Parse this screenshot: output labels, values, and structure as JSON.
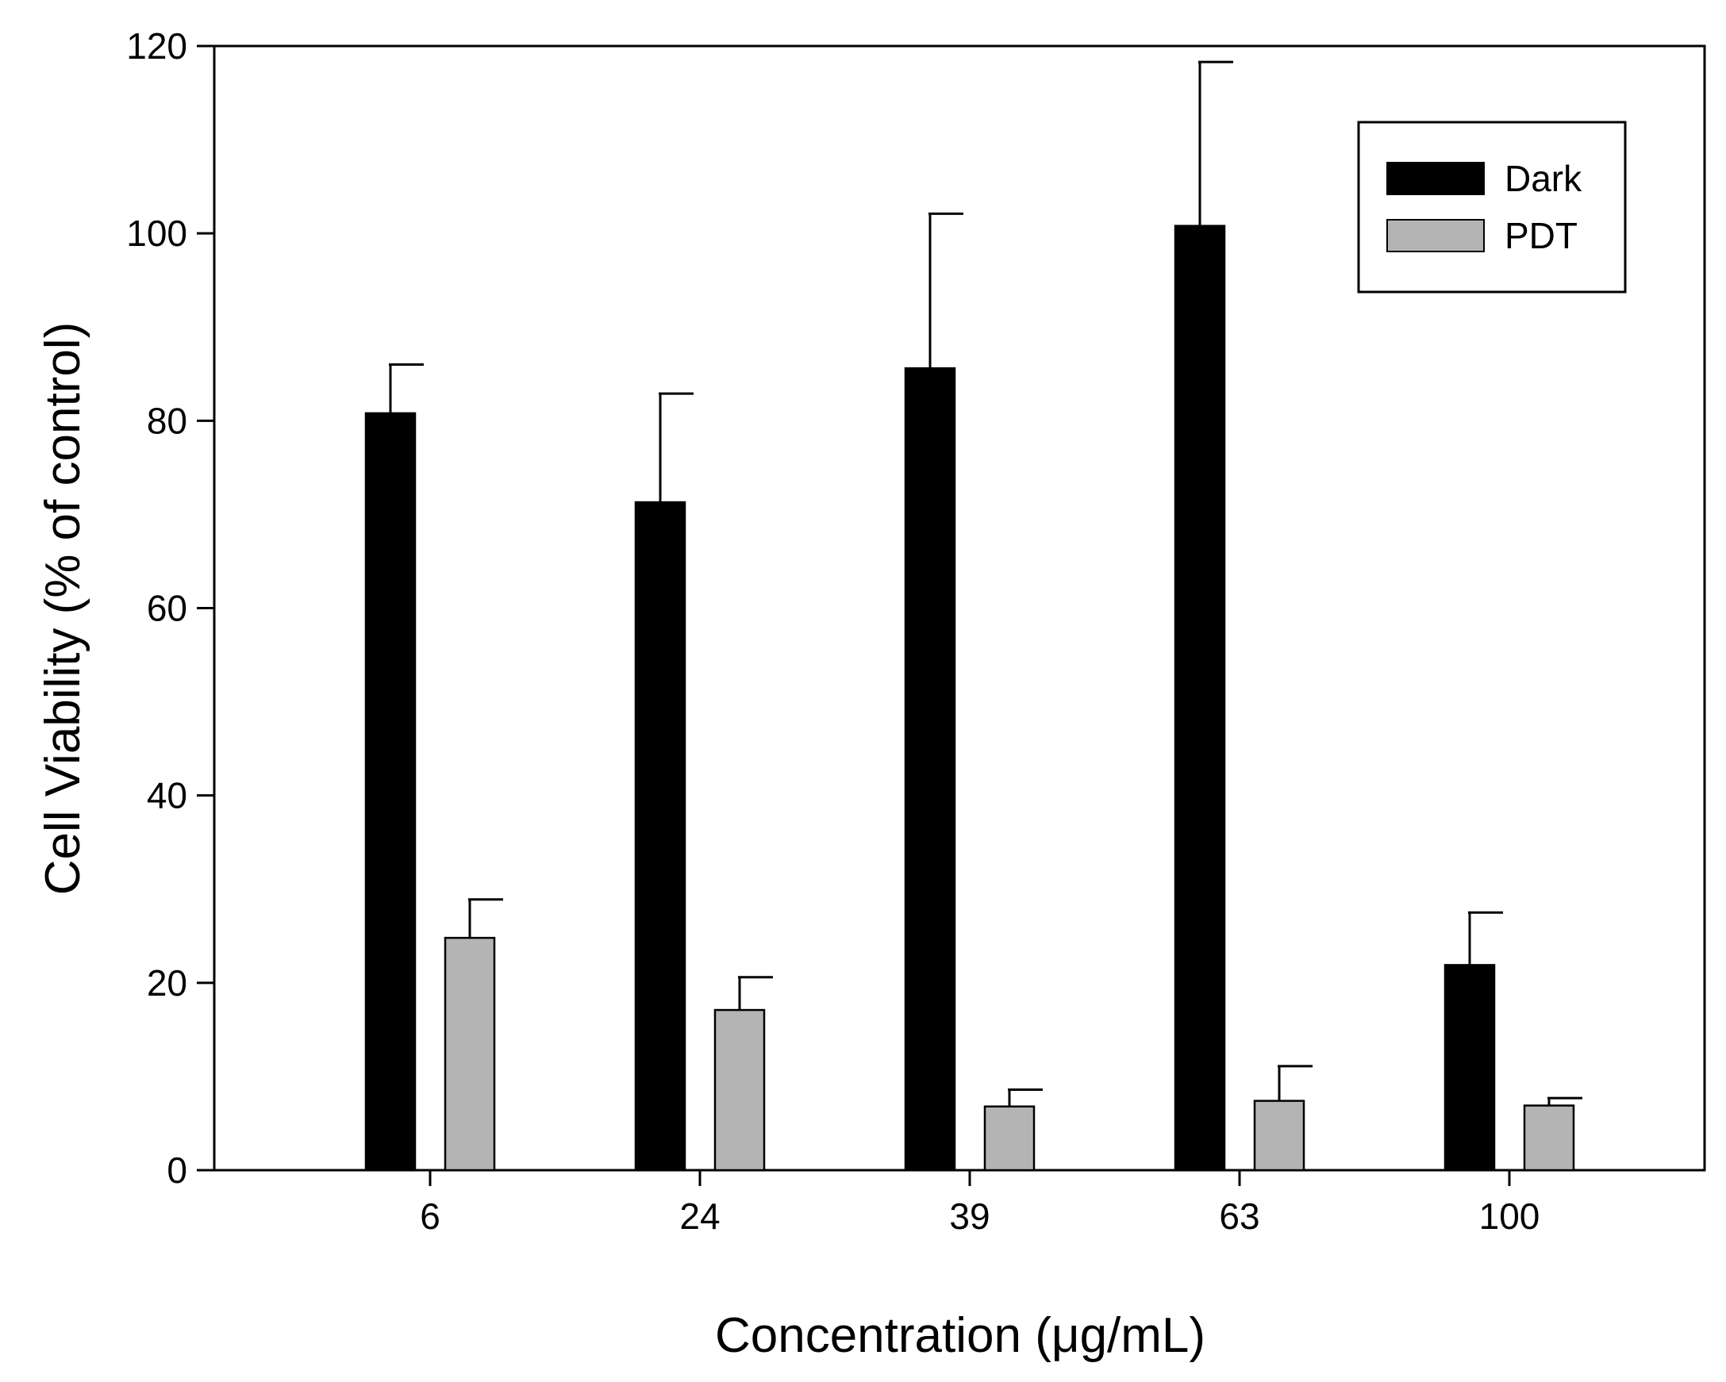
{
  "chart_data": {
    "type": "bar",
    "title": "",
    "xlabel": "Concentration (μg/mL)",
    "ylabel": "Cell Viability (% of control)",
    "categories": [
      "6",
      "24",
      "39",
      "63",
      "100"
    ],
    "ylim": [
      0,
      120
    ],
    "yticks": [
      0,
      20,
      40,
      60,
      80,
      100,
      120
    ],
    "grid": false,
    "legend_position": "top-right",
    "series": [
      {
        "name": "Dark",
        "color": "#000000",
        "values": [
          80.8,
          71.3,
          85.6,
          100.8,
          21.9
        ],
        "error_plus": [
          5.2,
          11.6,
          16.5,
          17.5,
          5.6
        ]
      },
      {
        "name": "PDT",
        "color": "#b4b4b4",
        "values": [
          24.8,
          17.1,
          6.8,
          7.4,
          6.9
        ],
        "error_plus": [
          4.1,
          3.5,
          1.8,
          3.7,
          0.8
        ]
      }
    ]
  }
}
